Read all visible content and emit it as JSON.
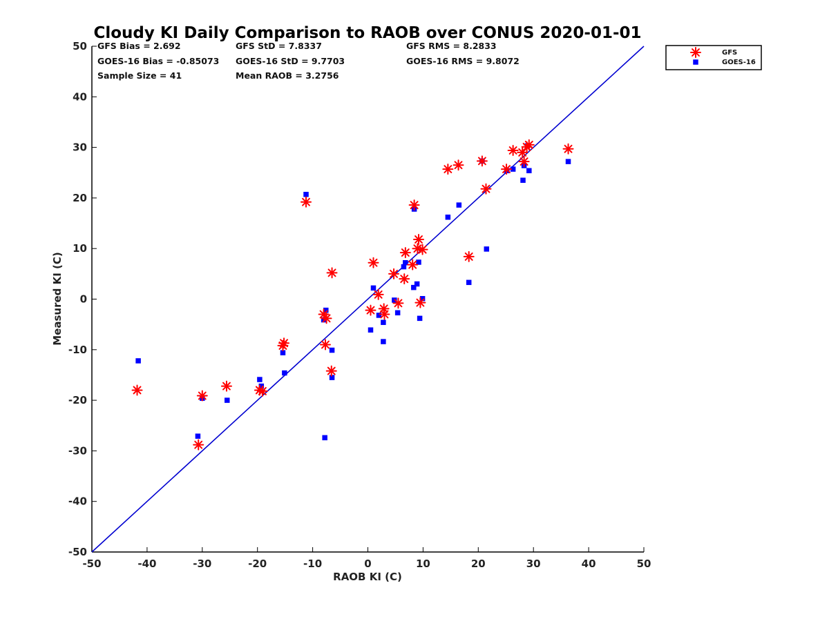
{
  "chart_data": {
    "type": "scatter",
    "title": "Cloudy KI Daily Comparison to RAOB over CONUS 2020-01-01",
    "xlabel": "RAOB KI (C)",
    "ylabel": "Measured KI (C)",
    "xlim": [
      -50,
      50
    ],
    "ylim": [
      -50,
      50
    ],
    "xticks": [
      -50,
      -40,
      -30,
      -20,
      -10,
      0,
      10,
      20,
      30,
      40,
      50
    ],
    "yticks": [
      -50,
      -40,
      -30,
      -20,
      -10,
      0,
      10,
      20,
      30,
      40,
      50
    ],
    "grid": false,
    "legend_position": "outside-top-right",
    "one_to_one_line": {
      "from": [
        -50,
        -50
      ],
      "to": [
        50,
        50
      ],
      "color": "#0000d0"
    },
    "stats": {
      "gfs_bias": "GFS Bias = 2.692",
      "goes_bias": "GOES-16 Bias = -0.85073",
      "sample_size": "Sample Size = 41",
      "gfs_std": "GFS StD = 7.8337",
      "goes_std": "GOES-16 StD = 9.7703",
      "mean_raob": "Mean RAOB = 3.2756",
      "gfs_rms": "GFS RMS = 8.2833",
      "goes_rms": "GOES-16 RMS = 9.8072"
    },
    "series": [
      {
        "name": "GFS",
        "marker": "asterisk",
        "color": "#ff0000",
        "points": [
          [
            -41.8,
            -18.0
          ],
          [
            -30.7,
            -28.8
          ],
          [
            -30.0,
            -19.1
          ],
          [
            -25.6,
            -17.2
          ],
          [
            -19.6,
            -18.0
          ],
          [
            -19.1,
            -18.2
          ],
          [
            -15.4,
            -9.2
          ],
          [
            -15.2,
            -8.7
          ],
          [
            -11.2,
            19.2
          ],
          [
            -8.0,
            -3.0
          ],
          [
            -7.5,
            -3.8
          ],
          [
            -7.7,
            -9.0
          ],
          [
            -6.6,
            -14.2
          ],
          [
            -6.5,
            5.2
          ],
          [
            0.5,
            -2.2
          ],
          [
            1.0,
            7.2
          ],
          [
            1.9,
            0.9
          ],
          [
            2.9,
            -1.9
          ],
          [
            3.0,
            -3.0
          ],
          [
            4.7,
            5.0
          ],
          [
            5.5,
            -0.8
          ],
          [
            6.6,
            4.0
          ],
          [
            6.8,
            9.2
          ],
          [
            8.1,
            6.8
          ],
          [
            8.4,
            18.6
          ],
          [
            9.0,
            10.0
          ],
          [
            9.2,
            11.8
          ],
          [
            9.5,
            -0.7
          ],
          [
            9.9,
            9.8
          ],
          [
            14.5,
            25.7
          ],
          [
            16.4,
            26.5
          ],
          [
            18.3,
            8.4
          ],
          [
            20.7,
            27.3
          ],
          [
            21.4,
            21.8
          ],
          [
            25.1,
            25.7
          ],
          [
            26.3,
            29.4
          ],
          [
            28.0,
            29.0
          ],
          [
            28.3,
            27.2
          ],
          [
            28.8,
            30.1
          ],
          [
            29.2,
            30.5
          ],
          [
            36.3,
            29.7
          ]
        ]
      },
      {
        "name": "GOES-16",
        "marker": "square",
        "color": "#0000ff",
        "points": [
          [
            -41.6,
            -12.2
          ],
          [
            -30.8,
            -27.1
          ],
          [
            -30.0,
            -19.6
          ],
          [
            -25.5,
            -20.0
          ],
          [
            -19.6,
            -15.9
          ],
          [
            -19.3,
            -17.2
          ],
          [
            -15.4,
            -10.6
          ],
          [
            -15.1,
            -14.6
          ],
          [
            -11.2,
            20.7
          ],
          [
            -8.0,
            -4.1
          ],
          [
            -7.6,
            -2.2
          ],
          [
            -7.8,
            -27.4
          ],
          [
            -6.5,
            -10.1
          ],
          [
            -6.5,
            -15.5
          ],
          [
            0.5,
            -6.1
          ],
          [
            1.0,
            2.2
          ],
          [
            2.0,
            -3.2
          ],
          [
            2.8,
            -4.6
          ],
          [
            2.8,
            -8.4
          ],
          [
            4.8,
            -0.2
          ],
          [
            5.4,
            -2.7
          ],
          [
            6.5,
            6.4
          ],
          [
            6.8,
            7.2
          ],
          [
            8.3,
            2.3
          ],
          [
            8.4,
            17.8
          ],
          [
            8.9,
            3.0
          ],
          [
            9.2,
            7.3
          ],
          [
            9.4,
            -3.8
          ],
          [
            9.9,
            0.1
          ],
          [
            14.5,
            16.2
          ],
          [
            16.5,
            18.6
          ],
          [
            18.3,
            3.3
          ],
          [
            20.7,
            27.3
          ],
          [
            21.5,
            9.9
          ],
          [
            25.2,
            25.4
          ],
          [
            26.3,
            25.7
          ],
          [
            28.1,
            23.5
          ],
          [
            28.3,
            26.4
          ],
          [
            28.9,
            30.3
          ],
          [
            29.2,
            25.4
          ],
          [
            36.3,
            27.2
          ]
        ]
      }
    ]
  }
}
